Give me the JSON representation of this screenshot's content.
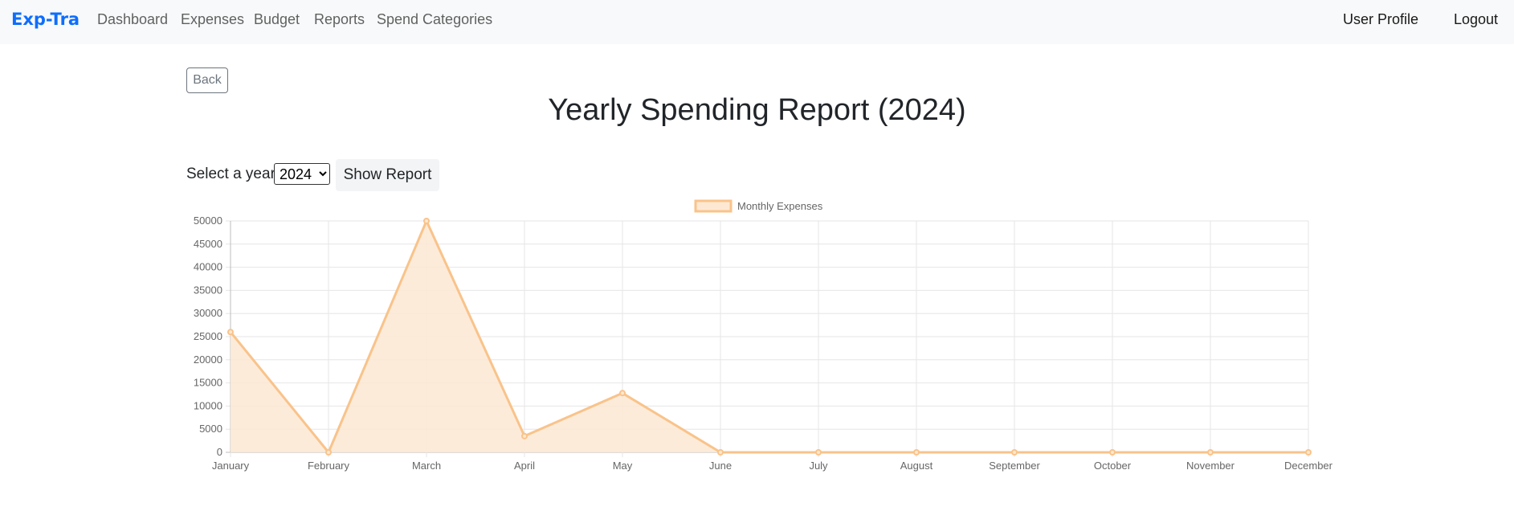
{
  "navbar": {
    "brand": "Exp-Tra",
    "links": [
      "Dashboard",
      "Expenses",
      "Budget",
      "Reports",
      "Spend Categories"
    ],
    "user_profile": "User Profile",
    "logout": "Logout"
  },
  "page": {
    "back_label": "Back",
    "title": "Yearly Spending Report (2024)",
    "select_label": "Select a year:",
    "selected_year": "2024",
    "show_report_label": "Show Report"
  },
  "colors": {
    "brand": "#0d6efd",
    "series_line": "#f9c38a",
    "series_fill": "#fde8d4"
  },
  "chart_data": {
    "type": "area",
    "categories": [
      "January",
      "February",
      "March",
      "April",
      "May",
      "June",
      "July",
      "August",
      "September",
      "October",
      "November",
      "December"
    ],
    "series": [
      {
        "name": "Monthly Expenses",
        "values": [
          26000,
          0,
          50000,
          3500,
          12800,
          0,
          0,
          0,
          0,
          0,
          0,
          0
        ]
      }
    ],
    "ylim": [
      0,
      50000
    ],
    "yticks": [
      0,
      5000,
      10000,
      15000,
      20000,
      25000,
      30000,
      35000,
      40000,
      45000,
      50000
    ],
    "grid": true,
    "legend": "top-center"
  }
}
